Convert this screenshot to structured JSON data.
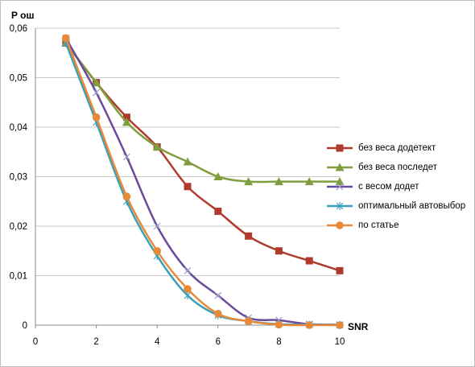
{
  "chart_data": {
    "type": "line",
    "ylabel": "P ош",
    "xlabel": "SNR",
    "xlim": [
      0,
      10
    ],
    "ylim": [
      0,
      0.06
    ],
    "xticks": [
      "0",
      "2",
      "4",
      "6",
      "8",
      "10"
    ],
    "yticks": [
      "0",
      "0,01",
      "0,02",
      "0,03",
      "0,04",
      "0,05",
      "0,06"
    ],
    "grid": "horizontal",
    "legend_position": "right",
    "x": [
      1,
      2,
      3,
      4,
      5,
      6,
      7,
      8,
      9,
      10
    ],
    "series": [
      {
        "name": "без веса додетект",
        "color": "#b03a2e",
        "marker": "square",
        "values": [
          0.057,
          0.049,
          0.042,
          0.036,
          0.028,
          0.023,
          0.018,
          0.015,
          0.013,
          0.011
        ]
      },
      {
        "name": "без веса последет",
        "color": "#7f9f3f",
        "marker": "triangle",
        "values": [
          0.057,
          0.049,
          0.041,
          0.036,
          0.033,
          0.03,
          0.029,
          0.029,
          0.029,
          0.029
        ]
      },
      {
        "name": "с весом додет",
        "color": "#6a4a9c",
        "marker": "x",
        "values": [
          0.058,
          0.047,
          0.034,
          0.02,
          0.011,
          0.006,
          0.0015,
          0.001,
          0.0002,
          0.0001
        ]
      },
      {
        "name": "оптимальный автовыбор",
        "color": "#3a9fb8",
        "marker": "star",
        "values": [
          0.057,
          0.041,
          0.025,
          0.014,
          0.006,
          0.002,
          0.0008,
          0.0002,
          0.0001,
          0.0
        ]
      },
      {
        "name": "по статье",
        "color": "#e8893a",
        "marker": "circle",
        "values": [
          0.058,
          0.042,
          0.026,
          0.015,
          0.0073,
          0.0023,
          0.0008,
          0.0001,
          0.0,
          0.0
        ]
      }
    ]
  }
}
